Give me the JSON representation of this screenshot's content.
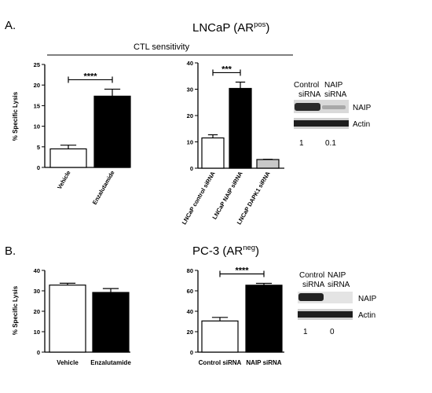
{
  "panels": {
    "A": {
      "letter": "A.",
      "title_main": "LNCaP (AR",
      "title_sup": "pos",
      "title_close": ")",
      "group_label": "CTL sensitivity",
      "blot": {
        "headers": [
          "Control\nsiRNA",
          "NAIP\nsiRNA"
        ],
        "rows": [
          "NAIP",
          "Actin"
        ],
        "quant": [
          "1",
          "0.1"
        ]
      }
    },
    "B": {
      "letter": "B.",
      "title_main": "PC-3 (AR",
      "title_sup": "neg",
      "title_close": ")",
      "blot": {
        "headers": [
          "Control\nsiRNA",
          "NAIP\nsiRNA"
        ],
        "rows": [
          "NAIP",
          "Actin"
        ],
        "quant": [
          "1",
          "0"
        ]
      }
    }
  },
  "colors": {
    "black": "#000000",
    "white": "#ffffff",
    "grey": "#c8c8c8"
  },
  "chart_data": [
    {
      "id": "A1",
      "type": "bar",
      "categories": [
        "Vehicle",
        "Enzalutamide"
      ],
      "values": [
        4.5,
        17.3
      ],
      "errors": [
        0.9,
        1.7
      ],
      "fills": [
        "white",
        "black"
      ],
      "ylabel": "% Specific Lysis",
      "ylim": [
        0,
        25
      ],
      "yticks": [
        0,
        5,
        10,
        15,
        20,
        25
      ],
      "significance": [
        {
          "from": 0,
          "to": 1,
          "label": "****"
        }
      ],
      "label_orientation": "rotated"
    },
    {
      "id": "A2",
      "type": "bar",
      "categories": [
        "LNCaP control siRNA",
        "LNCaP NAIP siRNA",
        "LNCaP DAPK1 siRNA"
      ],
      "values": [
        11.5,
        30.3,
        3.3
      ],
      "errors": [
        1.2,
        2.4,
        0.1
      ],
      "fills": [
        "white",
        "black",
        "grey"
      ],
      "ylabel": "",
      "ylim": [
        0,
        40
      ],
      "yticks": [
        0,
        10,
        20,
        30,
        40
      ],
      "significance": [
        {
          "from": 0,
          "to": 1,
          "label": "***"
        }
      ],
      "label_orientation": "rotated"
    },
    {
      "id": "B1",
      "type": "bar",
      "categories": [
        "Vehicle",
        "Enzalutamide"
      ],
      "values": [
        32.8,
        29.2
      ],
      "errors": [
        0.9,
        1.9
      ],
      "fills": [
        "white",
        "black"
      ],
      "ylabel": "% Specific Lysis",
      "ylim": [
        0,
        40
      ],
      "yticks": [
        0,
        10,
        20,
        30,
        40
      ],
      "significance": [],
      "label_orientation": "horizontal"
    },
    {
      "id": "B2",
      "type": "bar",
      "categories": [
        "Control siRNA",
        "NAIP siRNA"
      ],
      "values": [
        30.5,
        65.5
      ],
      "errors": [
        3.5,
        1.8
      ],
      "fills": [
        "white",
        "black"
      ],
      "ylabel": "",
      "ylim": [
        0,
        80
      ],
      "yticks": [
        0,
        20,
        40,
        60,
        80
      ],
      "significance": [
        {
          "from": 0,
          "to": 1,
          "label": "****"
        }
      ],
      "label_orientation": "horizontal"
    }
  ]
}
